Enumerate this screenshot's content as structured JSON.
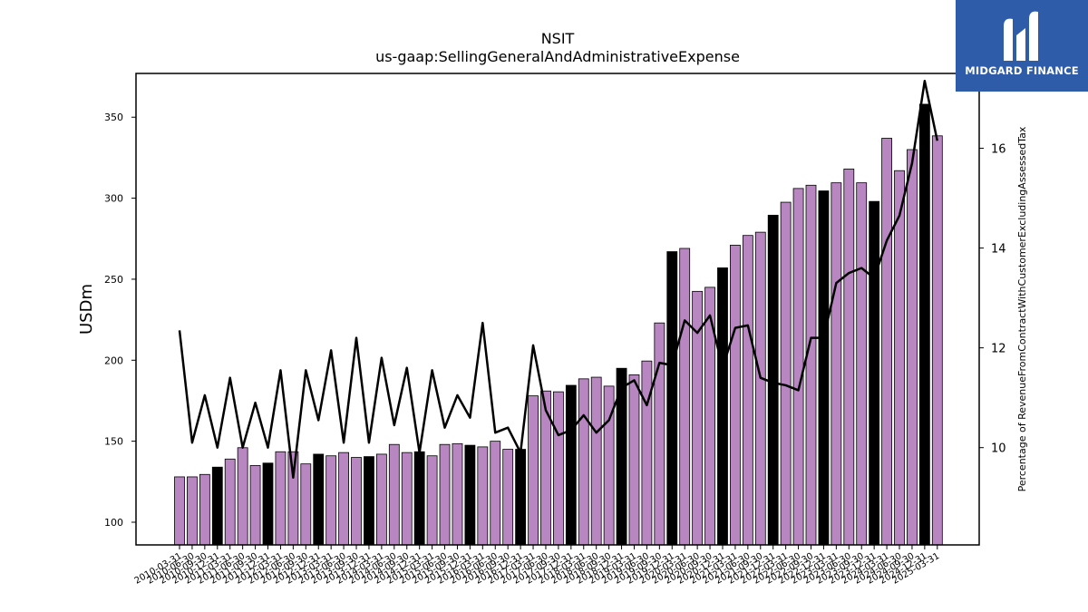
{
  "brand": {
    "name": "MIDGARD FINANCE"
  },
  "colors": {
    "bar_default": "#b886c1",
    "bar_fiscal_q4": "#000000",
    "line": "#000000",
    "logo_bg": "#2f5ca9"
  },
  "chart_data": {
    "type": "bar",
    "title": "NSIT",
    "subtitle": "us-gaap:SellingGeneralAndAdministrativeExpense",
    "ylabel": "USDm",
    "y2label": "Percentage of RevenueFromContractWithCustomerExcludingAssessedTax",
    "ylim": [
      86,
      377
    ],
    "y2lim": [
      8.05,
      17.5
    ],
    "yticks": [
      100,
      150,
      200,
      250,
      300,
      350
    ],
    "y2ticks": [
      10,
      12,
      14,
      16
    ],
    "categories": [
      "2010-03-31",
      "2010-06-30",
      "2010-09-30",
      "2010-12-31",
      "2011-03-31",
      "2011-06-30",
      "2011-09-30",
      "2011-12-31",
      "2012-03-31",
      "2012-06-30",
      "2012-09-30",
      "2012-12-31",
      "2013-03-31",
      "2013-06-30",
      "2013-09-30",
      "2013-12-31",
      "2014-03-31",
      "2014-06-30",
      "2014-09-30",
      "2014-12-31",
      "2015-03-31",
      "2015-06-30",
      "2015-09-30",
      "2015-12-31",
      "2016-03-31",
      "2016-06-30",
      "2016-09-30",
      "2016-12-31",
      "2017-03-31",
      "2017-06-30",
      "2017-09-30",
      "2017-12-31",
      "2018-03-31",
      "2018-06-30",
      "2018-09-30",
      "2018-12-31",
      "2019-03-31",
      "2019-06-30",
      "2019-09-30",
      "2019-12-31",
      "2020-03-31",
      "2020-06-30",
      "2020-09-30",
      "2020-12-31",
      "2021-03-31",
      "2021-06-30",
      "2021-09-30",
      "2021-12-31",
      "2022-03-31",
      "2022-06-30",
      "2022-09-30",
      "2022-12-31",
      "2023-03-31",
      "2023-06-30",
      "2023-09-30",
      "2023-12-31",
      "2024-03-31",
      "2024-06-30",
      "2024-09-30",
      "2024-12-31",
      "2025-03-31"
    ],
    "xtick_labels": [
      "2010-03-31",
      "2010-06-30",
      "2010-09-30",
      "2010-12-31",
      "2011-03-31",
      "2011-06-30",
      "2011-09-30",
      "2011-12-31",
      "2012-03-31",
      "2012-06-30",
      "2012-09-30",
      "2012-12-31",
      "2013-03-31",
      "2013-06-30",
      "2013-09-30",
      "2013-12-31",
      "2014-03-31",
      "2014-06-30",
      "2014-09-30",
      "2014-12-31",
      "2015-03-31",
      "2015-06-30",
      "2015-09-30",
      "2015-12-31",
      "2016-03-31",
      "2016-06-30",
      "2016-09-30",
      "2016-12-31",
      "2017-03-31",
      "2017-06-30",
      "2017-09-30",
      "2017-12-31",
      "2018-03-31",
      "2018-06-30",
      "2018-09-30",
      "2018-12-31",
      "2019-03-31",
      "2019-06-30",
      "2019-09-30",
      "2019-12-31",
      "2020-03-31",
      "2020-06-30",
      "2020-09-30",
      "2020-12-31",
      "2021-03-31",
      "2021-06-30",
      "2021-09-30",
      "2021-12-31",
      "2022-03-31",
      "2022-06-30",
      "2022-09-30",
      "2022-12-31",
      "2023-03-31",
      "2023-06-30",
      "2023-09-30",
      "2023-12-31",
      "2024-03-31",
      "2024-06-30",
      "2024-09-30",
      "2024-12-31",
      "2025-03-31"
    ],
    "series": [
      {
        "type": "bar",
        "axis": "left",
        "values": [
          128,
          128,
          129.5,
          134,
          139,
          146,
          135,
          136.5,
          143.5,
          143.5,
          136,
          142,
          141,
          143,
          140,
          140.5,
          142,
          148,
          143,
          143.5,
          141,
          148,
          148.5,
          147.5,
          146.5,
          150,
          145,
          145,
          178,
          181,
          180.5,
          184.5,
          188.5,
          189.5,
          184,
          195,
          191,
          199.5,
          223,
          267,
          269,
          242.5,
          245,
          257,
          271,
          277,
          279,
          289.5,
          297.5,
          306,
          308,
          304.5,
          309.5,
          318,
          309.5,
          298,
          337,
          317,
          330,
          358,
          338.5
        ],
        "fiscal_q4": [
          false,
          false,
          false,
          true,
          false,
          false,
          false,
          true,
          false,
          false,
          false,
          true,
          false,
          false,
          false,
          true,
          false,
          false,
          false,
          true,
          false,
          false,
          false,
          true,
          false,
          false,
          false,
          true,
          false,
          false,
          false,
          true,
          false,
          false,
          false,
          true,
          false,
          false,
          false,
          true,
          false,
          false,
          false,
          true,
          false,
          false,
          false,
          true,
          false,
          false,
          false,
          true,
          false,
          false,
          false,
          true,
          false,
          false,
          false,
          true,
          false
        ]
      },
      {
        "type": "line",
        "axis": "right",
        "values": [
          12.35,
          10.1,
          11.05,
          10.0,
          11.4,
          10.0,
          10.9,
          10.0,
          11.55,
          9.4,
          11.55,
          10.55,
          11.95,
          10.1,
          12.2,
          10.1,
          11.8,
          10.45,
          11.6,
          9.9,
          11.55,
          10.4,
          11.05,
          10.6,
          12.5,
          10.3,
          10.4,
          9.9,
          12.05,
          10.75,
          10.25,
          10.35,
          10.65,
          10.3,
          10.55,
          11.2,
          11.35,
          10.85,
          11.7,
          11.65,
          12.55,
          12.3,
          12.65,
          11.6,
          12.4,
          12.45,
          11.4,
          11.3,
          11.25,
          11.15,
          12.2,
          12.2,
          13.3,
          13.5,
          13.6,
          13.4,
          14.15,
          14.65,
          15.7,
          17.35,
          16.15
        ]
      }
    ],
    "grid": false,
    "legend": "none"
  }
}
